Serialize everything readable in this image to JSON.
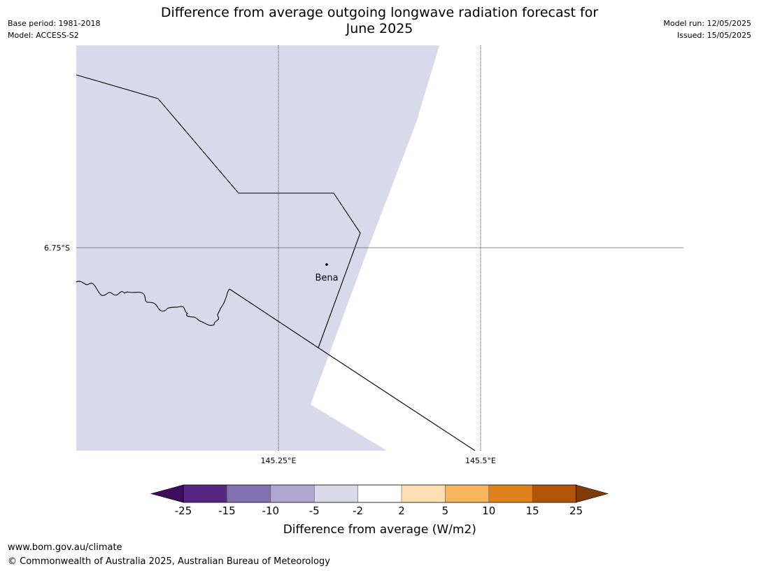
{
  "header": {
    "title_line1": "Difference from average outgoing longwave radiation forecast for",
    "title_line2": "June 2025",
    "base_period": "Base period: 1981-2018",
    "model": "Model: ACCESS-S2",
    "model_run": "Model run: 12/05/2025",
    "issued": "Issued: 15/05/2025"
  },
  "map": {
    "lat_labels": [
      "6.75°S"
    ],
    "lon_labels": [
      "145.25°E",
      "145.5°E"
    ],
    "place_name": "Bena",
    "land_fill_color": "#d8d9ea",
    "background_color": "#ffffff"
  },
  "legend": {
    "tick_labels": [
      "-25",
      "-15",
      "-10",
      "-5",
      "-2",
      "2",
      "5",
      "10",
      "15",
      "25"
    ],
    "title": "Difference from average (W/m2)",
    "colors": [
      "#3f0d5d",
      "#572786",
      "#8370b0",
      "#b0a8d2",
      "#d9d9ea",
      "#ffffff",
      "#fddfb4",
      "#f9b55e",
      "#e0811b",
      "#b05606",
      "#7f3b08"
    ]
  },
  "footer": {
    "url": "www.bom.gov.au/climate",
    "copyright": "© Commonwealth of Australia 2025, Australian Bureau of Meteorology"
  }
}
